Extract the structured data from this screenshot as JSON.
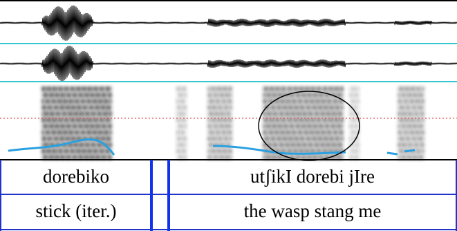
{
  "tiers": [
    {
      "cells": [
        "dorebiko",
        "utʃikI dorebi jIre"
      ]
    },
    {
      "cells": [
        "stick (iter.)",
        "the wasp stang me"
      ]
    }
  ]
}
